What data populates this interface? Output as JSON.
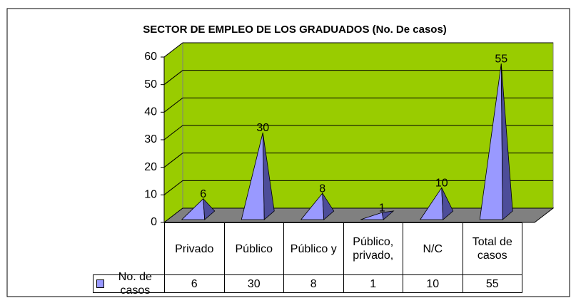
{
  "chart_data": {
    "type": "pyramid",
    "title": "SECTOR DE EMPLEO DE LOS GRADUADOS (No. De casos)",
    "categories": [
      "Privado",
      "Público",
      "Público y",
      "Público, privado,",
      "N/C",
      "Total de casos"
    ],
    "series": [
      {
        "name": "No. de casos",
        "color": "#9999ff",
        "values": [
          6,
          30,
          8,
          1,
          10,
          55
        ]
      }
    ],
    "ylim": [
      0,
      60
    ],
    "yticks": [
      0,
      10,
      20,
      30,
      40,
      50,
      60
    ],
    "grid": true,
    "wall_color": "#99cc00",
    "floor_color": "#808080"
  }
}
